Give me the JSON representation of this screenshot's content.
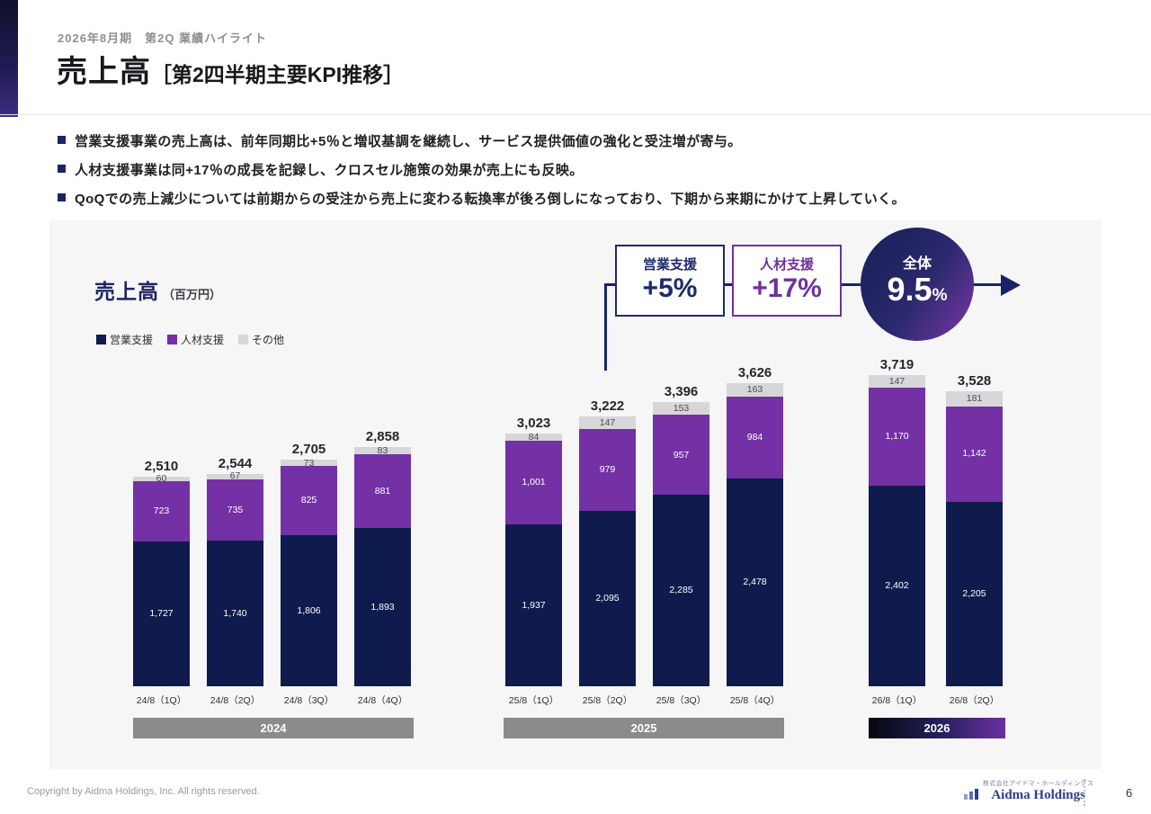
{
  "header": {
    "eyebrow": "2026年8月期　第2Q 業績ハイライト",
    "title_main": "売上高",
    "title_sub": "［第2四半期主要KPI推移］"
  },
  "bullets": [
    "営業支援事業の売上高は、前年同期比+5％と増収基調を継続し、サービス提供価値の強化と受注増が寄与。",
    "人材支援事業は同+17％の成長を記録し、クロスセル施策の効果が売上にも反映。",
    "QoQでの売上減少については前期からの受注から売上に変わる転換率が後ろ倒しになっており、下期から来期にかけて上昇していく。"
  ],
  "chart": {
    "title": "売上高",
    "unit": "（百万円）",
    "callouts": {
      "box1": {
        "label": "営業支援",
        "value": "+5%",
        "color": "#1e2a6e"
      },
      "box2": {
        "label": "人材支援",
        "value": "+17%",
        "color": "#7030a0"
      },
      "circle": {
        "label": "全体",
        "value": "9.5",
        "suffix": "%"
      }
    }
  },
  "chart_data": {
    "type": "bar",
    "stacked": true,
    "title": "売上高（百万円）",
    "legend_position": "top-left",
    "ylim": [
      0,
      3719
    ],
    "categories": [
      "24/8（1Q）",
      "24/8（2Q）",
      "24/8（3Q）",
      "24/8（4Q）",
      "25/8（1Q）",
      "25/8（2Q）",
      "25/8（3Q）",
      "25/8（4Q）",
      "26/8（1Q）",
      "26/8（2Q）"
    ],
    "series": [
      {
        "name": "営業支援",
        "color": "#101b4d",
        "label_color": "#ffffff",
        "values": [
          1727,
          1740,
          1806,
          1893,
          1937,
          2095,
          2285,
          2478,
          2402,
          2205
        ]
      },
      {
        "name": "人材支援",
        "color": "#7331a5",
        "label_color": "#ffffff",
        "values": [
          723,
          735,
          825,
          881,
          1001,
          979,
          957,
          984,
          1170,
          1142
        ]
      },
      {
        "name": "その他",
        "color": "#d7d7d9",
        "label_color": "#4a4a50",
        "values": [
          60,
          67,
          73,
          83,
          84,
          147,
          153,
          163,
          147,
          181
        ]
      }
    ],
    "totals": [
      "2,510",
      "2,544",
      "2,705",
      "2,858",
      "3,023",
      "3,222",
      "3,396",
      "3,626",
      "3,719",
      "3,528"
    ],
    "year_groups": [
      {
        "label": "2024",
        "count": 4,
        "gradient": false
      },
      {
        "label": "2025",
        "count": 4,
        "gradient": false
      },
      {
        "label": "2026",
        "count": 2,
        "gradient": true
      }
    ],
    "yoy": {
      "営業支援": "+5%",
      "人材支援": "+17%",
      "全体": "9.5%"
    }
  },
  "footer": {
    "copyright": "Copyright by Aidma Holdings, Inc. All rights reserved.",
    "logo_small": "株式会社アイドマ・ホールディングス",
    "logo_main": "Aidma Holdings",
    "page": "6"
  }
}
